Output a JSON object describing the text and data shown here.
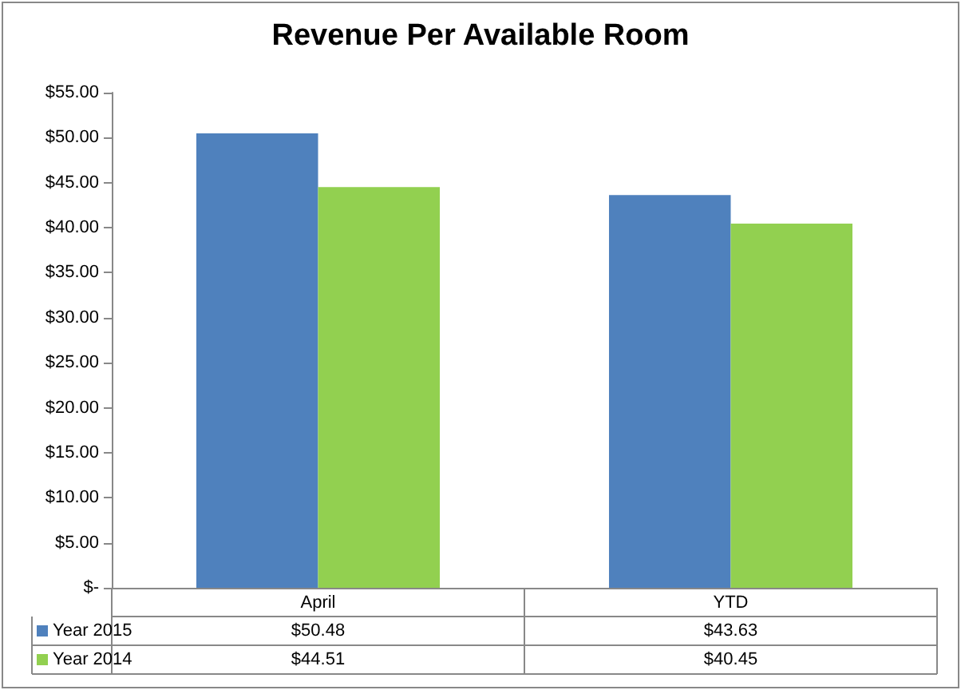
{
  "chart_data": {
    "type": "bar",
    "title": "Revenue Per Available Room",
    "categories": [
      "April",
      "YTD"
    ],
    "series": [
      {
        "name": "Year 2015",
        "color": "#4f81bd",
        "values": [
          50.48,
          43.63
        ],
        "value_labels": [
          "$50.48",
          "$43.63"
        ]
      },
      {
        "name": "Year 2014",
        "color": "#92d050",
        "values": [
          44.51,
          40.45
        ],
        "value_labels": [
          "$44.51",
          "$40.45"
        ]
      }
    ],
    "ylim": [
      0,
      55
    ],
    "yticks": [
      {
        "value": 0,
        "label": "$-"
      },
      {
        "value": 5,
        "label": "$5.00"
      },
      {
        "value": 10,
        "label": "$10.00"
      },
      {
        "value": 15,
        "label": "$15.00"
      },
      {
        "value": 20,
        "label": "$20.00"
      },
      {
        "value": 25,
        "label": "$25.00"
      },
      {
        "value": 30,
        "label": "$30.00"
      },
      {
        "value": 35,
        "label": "$35.00"
      },
      {
        "value": 40,
        "label": "$40.00"
      },
      {
        "value": 45,
        "label": "$45.00"
      },
      {
        "value": 50,
        "label": "$50.00"
      },
      {
        "value": 55,
        "label": "$55.00"
      }
    ],
    "grid": false,
    "legend": "bottom"
  }
}
